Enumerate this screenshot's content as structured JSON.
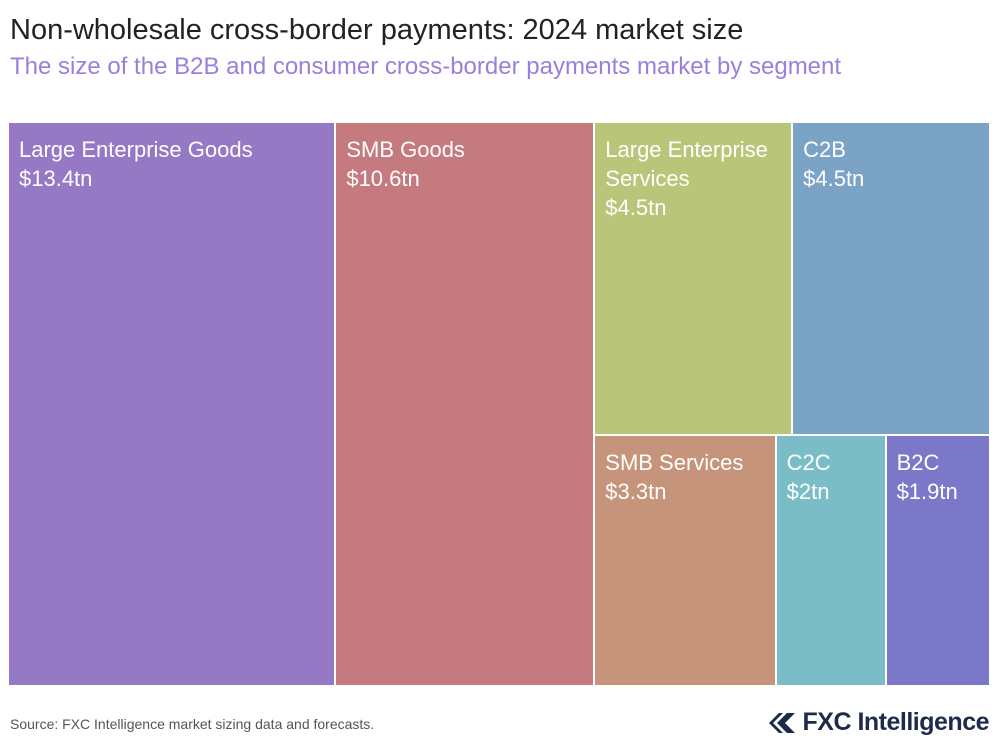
{
  "chart_data": {
    "type": "treemap",
    "title": "Non-wholesale cross-border payments: 2024 market size",
    "subtitle": "The size of the B2B and consumer cross-border payments market by segment",
    "categories": [
      "Large Enterprise Goods",
      "SMB Goods",
      "Large Enterprise Services",
      "C2B",
      "SMB Services",
      "C2C",
      "B2C"
    ],
    "values": [
      13.4,
      10.6,
      4.5,
      4.5,
      3.3,
      2,
      1.9
    ],
    "value_labels": [
      "$13.4tn",
      "$10.6tn",
      "$4.5tn",
      "$4.5tn",
      "$3.3tn",
      "$2tn",
      "$1.9tn"
    ],
    "colors": [
      "#9579c5",
      "#c57a80",
      "#b9c67a",
      "#7aa3c6",
      "#c5947a",
      "#7abdc6",
      "#7b78c9"
    ]
  },
  "footer": {
    "source": "Source: FXC Intelligence market sizing data and forecasts.",
    "brand": "FXC Intelligence"
  }
}
